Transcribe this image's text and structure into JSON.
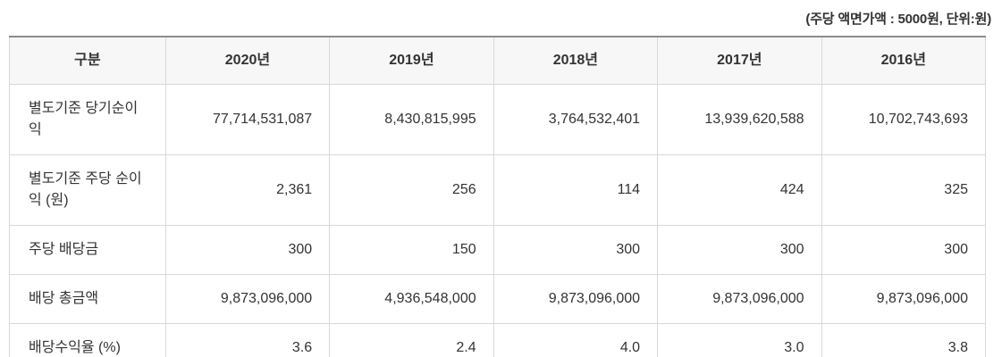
{
  "note": "(주당 액면가액 : 5000원, 단위:원)",
  "table": {
    "columns": [
      "구분",
      "2020년",
      "2019년",
      "2018년",
      "2017년",
      "2016년"
    ],
    "rows": [
      {
        "label": "별도기준 당기순이익",
        "values": [
          "77,714,531,087",
          "8,430,815,995",
          "3,764,532,401",
          "13,939,620,588",
          "10,702,743,693"
        ]
      },
      {
        "label": "별도기준 주당 순이익 (원)",
        "values": [
          "2,361",
          "256",
          "114",
          "424",
          "325"
        ]
      },
      {
        "label": "주당 배당금",
        "values": [
          "300",
          "150",
          "300",
          "300",
          "300"
        ]
      },
      {
        "label": "배당 총금액",
        "values": [
          "9,873,096,000",
          "4,936,548,000",
          "9,873,096,000",
          "9,873,096,000",
          "9,873,096,000"
        ]
      },
      {
        "label": "배당수익율 (%)",
        "values": [
          "3.6",
          "2.4",
          "4.0",
          "3.0",
          "3.8"
        ]
      }
    ]
  },
  "colors": {
    "text": "#333333",
    "header_background": "#f7f7f7",
    "border_light": "#d9d9d9",
    "border_dark": "#8c8c8c",
    "page_background": "#ffffff"
  }
}
